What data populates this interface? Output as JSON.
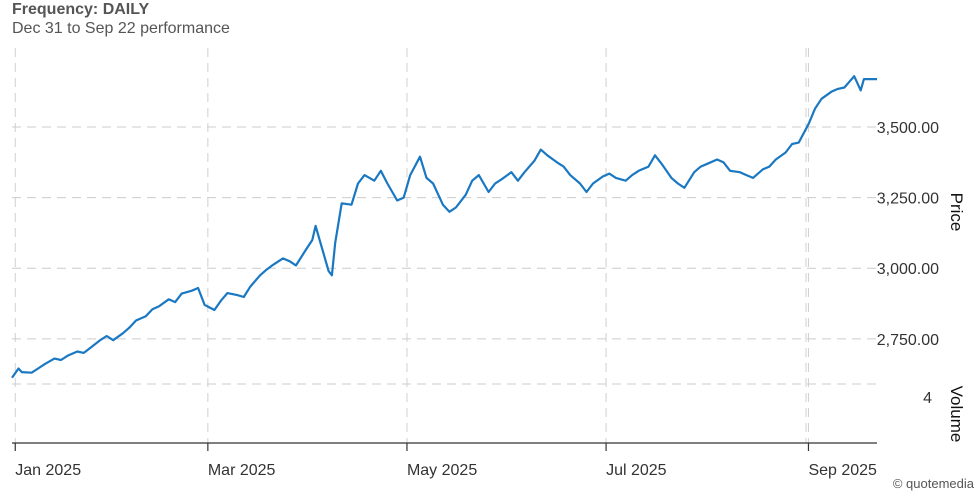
{
  "header": {
    "title": "Frequency: DAILY",
    "subtitle": "Dec 31 to Sep 22 performance"
  },
  "credit": "© quotemedia",
  "chart_data": {
    "type": "line",
    "line_color": "#1a78c2",
    "grid": true,
    "y_axis_title": "Price",
    "volume_axis_title": "Volume",
    "volume_tick_label": "4",
    "y_ticks": [
      2750,
      3000,
      3250,
      3500
    ],
    "y_tick_labels": [
      "2,750.00",
      "3,000.00",
      "3,250.00",
      "3,500.00"
    ],
    "ylim": [
      2590,
      3780
    ],
    "xlim": [
      "2024-12-31",
      "2025-09-22"
    ],
    "x_ticks": [
      "2025-01-01",
      "2025-03-01",
      "2025-05-01",
      "2025-07-01",
      "2025-09-01"
    ],
    "x_tick_labels": [
      "Jan 2025",
      "Mar 2025",
      "May 2025",
      "Jul 2025",
      "Sep 2025"
    ],
    "series": [
      {
        "points": [
          [
            "2024-12-31",
            2612
          ],
          [
            "2025-01-02",
            2645
          ],
          [
            "2025-01-03",
            2632
          ],
          [
            "2025-01-06",
            2630
          ],
          [
            "2025-01-08",
            2645
          ],
          [
            "2025-01-10",
            2660
          ],
          [
            "2025-01-13",
            2680
          ],
          [
            "2025-01-15",
            2675
          ],
          [
            "2025-01-17",
            2690
          ],
          [
            "2025-01-20",
            2705
          ],
          [
            "2025-01-22",
            2700
          ],
          [
            "2025-01-24",
            2718
          ],
          [
            "2025-01-27",
            2745
          ],
          [
            "2025-01-29",
            2760
          ],
          [
            "2025-01-31",
            2745
          ],
          [
            "2025-02-03",
            2770
          ],
          [
            "2025-02-05",
            2790
          ],
          [
            "2025-02-07",
            2815
          ],
          [
            "2025-02-10",
            2830
          ],
          [
            "2025-02-12",
            2855
          ],
          [
            "2025-02-14",
            2865
          ],
          [
            "2025-02-17",
            2890
          ],
          [
            "2025-02-19",
            2880
          ],
          [
            "2025-02-21",
            2910
          ],
          [
            "2025-02-24",
            2920
          ],
          [
            "2025-02-26",
            2930
          ],
          [
            "2025-02-28",
            2870
          ],
          [
            "2025-03-03",
            2852
          ],
          [
            "2025-03-05",
            2885
          ],
          [
            "2025-03-07",
            2912
          ],
          [
            "2025-03-10",
            2905
          ],
          [
            "2025-03-12",
            2898
          ],
          [
            "2025-03-14",
            2935
          ],
          [
            "2025-03-17",
            2975
          ],
          [
            "2025-03-19",
            2995
          ],
          [
            "2025-03-21",
            3012
          ],
          [
            "2025-03-24",
            3035
          ],
          [
            "2025-03-26",
            3025
          ],
          [
            "2025-03-28",
            3010
          ],
          [
            "2025-03-31",
            3065
          ],
          [
            "2025-04-02",
            3100
          ],
          [
            "2025-04-03",
            3150
          ],
          [
            "2025-04-07",
            2990
          ],
          [
            "2025-04-08",
            2975
          ],
          [
            "2025-04-09",
            3090
          ],
          [
            "2025-04-11",
            3230
          ],
          [
            "2025-04-14",
            3225
          ],
          [
            "2025-04-16",
            3300
          ],
          [
            "2025-04-18",
            3330
          ],
          [
            "2025-04-21",
            3310
          ],
          [
            "2025-04-23",
            3345
          ],
          [
            "2025-04-25",
            3300
          ],
          [
            "2025-04-28",
            3240
          ],
          [
            "2025-04-30",
            3250
          ],
          [
            "2025-05-02",
            3330
          ],
          [
            "2025-05-05",
            3395
          ],
          [
            "2025-05-07",
            3320
          ],
          [
            "2025-05-09",
            3300
          ],
          [
            "2025-05-12",
            3225
          ],
          [
            "2025-05-14",
            3200
          ],
          [
            "2025-05-16",
            3215
          ],
          [
            "2025-05-19",
            3260
          ],
          [
            "2025-05-21",
            3310
          ],
          [
            "2025-05-23",
            3330
          ],
          [
            "2025-05-26",
            3270
          ],
          [
            "2025-05-28",
            3300
          ],
          [
            "2025-05-30",
            3315
          ],
          [
            "2025-06-02",
            3340
          ],
          [
            "2025-06-04",
            3310
          ],
          [
            "2025-06-06",
            3340
          ],
          [
            "2025-06-09",
            3380
          ],
          [
            "2025-06-11",
            3420
          ],
          [
            "2025-06-13",
            3400
          ],
          [
            "2025-06-16",
            3375
          ],
          [
            "2025-06-18",
            3360
          ],
          [
            "2025-06-20",
            3330
          ],
          [
            "2025-06-23",
            3300
          ],
          [
            "2025-06-25",
            3270
          ],
          [
            "2025-06-27",
            3300
          ],
          [
            "2025-06-30",
            3325
          ],
          [
            "2025-07-02",
            3335
          ],
          [
            "2025-07-04",
            3320
          ],
          [
            "2025-07-07",
            3310
          ],
          [
            "2025-07-09",
            3330
          ],
          [
            "2025-07-11",
            3345
          ],
          [
            "2025-07-14",
            3360
          ],
          [
            "2025-07-16",
            3400
          ],
          [
            "2025-07-18",
            3370
          ],
          [
            "2025-07-21",
            3320
          ],
          [
            "2025-07-23",
            3300
          ],
          [
            "2025-07-25",
            3285
          ],
          [
            "2025-07-28",
            3340
          ],
          [
            "2025-07-30",
            3360
          ],
          [
            "2025-08-01",
            3370
          ],
          [
            "2025-08-04",
            3385
          ],
          [
            "2025-08-06",
            3375
          ],
          [
            "2025-08-08",
            3345
          ],
          [
            "2025-08-11",
            3340
          ],
          [
            "2025-08-13",
            3330
          ],
          [
            "2025-08-15",
            3320
          ],
          [
            "2025-08-18",
            3350
          ],
          [
            "2025-08-20",
            3360
          ],
          [
            "2025-08-22",
            3385
          ],
          [
            "2025-08-25",
            3410
          ],
          [
            "2025-08-27",
            3440
          ],
          [
            "2025-08-29",
            3445
          ],
          [
            "2025-09-01",
            3510
          ],
          [
            "2025-09-03",
            3565
          ],
          [
            "2025-09-05",
            3600
          ],
          [
            "2025-09-08",
            3625
          ],
          [
            "2025-09-10",
            3635
          ],
          [
            "2025-09-12",
            3640
          ],
          [
            "2025-09-15",
            3680
          ],
          [
            "2025-09-17",
            3630
          ],
          [
            "2025-09-18",
            3670
          ],
          [
            "2025-09-22",
            3670
          ]
        ]
      }
    ]
  }
}
